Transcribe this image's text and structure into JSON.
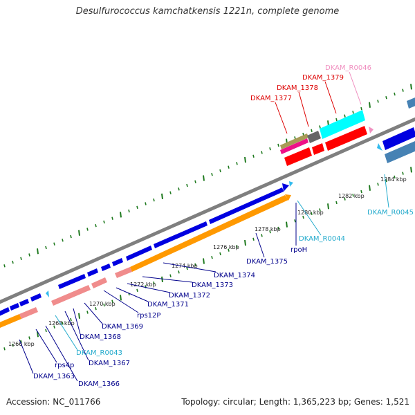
{
  "title": "Desulfurococcus kamchatkensis 1221n, complete genome",
  "footer": {
    "accession": "Accession: NC_011766",
    "summary": "Topology: circular; Length: 1,365,223 bp; Genes: 1,521"
  },
  "colors": {
    "backbone": "#8c8c8c",
    "tick": "#1f7a1f",
    "gene_blue": "#0000e0",
    "gene_orange": "#ff9900",
    "gene_pink": "#f08c8c",
    "gene_red": "#ff0000",
    "gene_cyan": "#00ffff",
    "gene_steel": "#4682b4",
    "trna_cyan": "#33bbee",
    "label_blue": "#00008b",
    "label_cyan": "#22aacc",
    "label_red": "#dd0000",
    "label_pink": "#f090c0"
  },
  "ticks": [
    {
      "label": "1266 kbp"
    },
    {
      "label": "1268 kbp"
    },
    {
      "label": "1270 kbp"
    },
    {
      "label": "1272 kbp"
    },
    {
      "label": "1274 kbp"
    },
    {
      "label": "1276 kbp"
    },
    {
      "label": "1278 kbp"
    },
    {
      "label": "1280 kbp"
    },
    {
      "label": "1282 kbp"
    },
    {
      "label": "1284 kbp"
    }
  ],
  "gene_labels": [
    {
      "text": "DKAM_1363",
      "color": "label_blue"
    },
    {
      "text": "rps4p",
      "color": "label_blue"
    },
    {
      "text": "DKAM_1366",
      "color": "label_blue"
    },
    {
      "text": "DKAM_R0043",
      "color": "label_cyan"
    },
    {
      "text": "DKAM_1367",
      "color": "label_blue"
    },
    {
      "text": "DKAM_1368",
      "color": "label_blue"
    },
    {
      "text": "DKAM_1369",
      "color": "label_blue"
    },
    {
      "text": "rps12P",
      "color": "label_blue"
    },
    {
      "text": "DKAM_1371",
      "color": "label_blue"
    },
    {
      "text": "DKAM_1372",
      "color": "label_blue"
    },
    {
      "text": "DKAM_1373",
      "color": "label_blue"
    },
    {
      "text": "DKAM_1374",
      "color": "label_blue"
    },
    {
      "text": "DKAM_1375",
      "color": "label_blue"
    },
    {
      "text": "rpoH",
      "color": "label_blue"
    },
    {
      "text": "DKAM_R0044",
      "color": "label_cyan"
    },
    {
      "text": "DKAM_R0045",
      "color": "label_cyan"
    },
    {
      "text": "DKAM_1377",
      "color": "label_red"
    },
    {
      "text": "DKAM_1378",
      "color": "label_red"
    },
    {
      "text": "DKAM_1379",
      "color": "label_red"
    },
    {
      "text": "DKAM_R0046",
      "color": "label_pink"
    }
  ]
}
